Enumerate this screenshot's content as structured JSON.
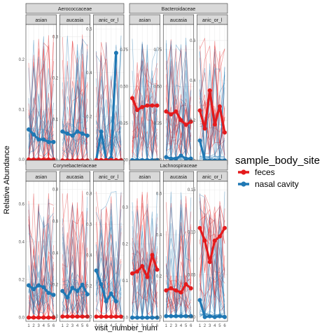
{
  "chart_data": {
    "type": "line",
    "xlabel": "visit_number_num",
    "ylabel": "Relative Abundance",
    "x_ticks": [
      1,
      2,
      3,
      4,
      5,
      6
    ],
    "subgroups": [
      "asian",
      "caucasian",
      "hispanic_or_latino"
    ],
    "subgroup_labels": [
      "asian",
      "aucasia",
      "anic_or_l"
    ],
    "legend": {
      "title": "sample_body_site",
      "position": "right",
      "entries": [
        {
          "name": "feces",
          "color": "#e41a1c"
        },
        {
          "name": "nasal cavity",
          "color": "#1f78b4"
        }
      ]
    },
    "background_lines": {
      "description_colors": [
        "#e41a1c",
        "#1f78b4"
      ]
    },
    "facets": [
      {
        "family": "Aerococcaceae",
        "panels": [
          {
            "subgroup": "asian",
            "ylim": [
              -0.01,
              0.27
            ],
            "yticks": [
              0.0,
              0.1,
              0.2
            ],
            "series": {
              "feces": [
                0.0,
                0.0,
                0.0,
                0.0,
                0.0,
                0.0
              ],
              "nasal cavity": [
                0.06,
                0.05,
                0.04,
                0.04,
                0.035,
                0.035
              ]
            }
          },
          {
            "subgroup": "caucasian",
            "ylim": [
              -0.01,
              0.33
            ],
            "yticks": [
              0.0,
              0.1,
              0.2,
              0.3
            ],
            "series": {
              "feces": [
                0.0,
                0.0,
                0.0,
                0.0,
                0.0,
                0.0
              ],
              "nasal cavity": [
                0.07,
                0.065,
                0.06,
                0.07,
                0.065,
                0.06
              ]
            }
          },
          {
            "subgroup": "hispanic_or_latino",
            "ylim": [
              -0.02,
              0.62
            ],
            "yticks": [
              0.0,
              0.2,
              0.4,
              0.6
            ],
            "series": {
              "feces": [
                0.0,
                0.0,
                0.0,
                0.0,
                0.0,
                0.0
              ],
              "nasal cavity": [
                0.0,
                0.13,
                0.0,
                0.01,
                0.49,
                null
              ]
            }
          }
        ]
      },
      {
        "family": "Bacteroidaceae",
        "panels": [
          {
            "subgroup": "asian",
            "ylim": [
              -0.03,
              0.92
            ],
            "yticks": [
              0.0,
              0.25,
              0.5,
              0.75
            ],
            "series": {
              "feces": [
                0.42,
                0.34,
                0.36,
                0.37,
                0.37,
                0.37
              ],
              "nasal cavity": [
                0.0,
                0.0,
                0.0,
                0.0,
                0.0,
                0.0
              ]
            }
          },
          {
            "subgroup": "caucasian",
            "ylim": [
              -0.03,
              0.92
            ],
            "yticks": [
              0.0,
              0.25,
              0.5,
              0.75
            ],
            "series": {
              "feces": [
                0.33,
                0.31,
                0.33,
                0.27,
                0.24,
                0.26
              ],
              "nasal cavity": [
                0.02,
                0.01,
                0.01,
                0.03,
                0.01,
                0.01
              ]
            }
          },
          {
            "subgroup": "hispanic_or_latino",
            "ylim": [
              -0.02,
              0.68
            ],
            "yticks": [
              0.0,
              0.2,
              0.4,
              0.6
            ],
            "series": {
              "feces": [
                0.25,
                0.16,
                0.35,
                0.18,
                0.27,
                0.14
              ],
              "nasal cavity": [
                0.1,
                0.0,
                0.0,
                0.0,
                0.0,
                0.0
              ]
            }
          }
        ]
      },
      {
        "family": "Corynebacteriaceae",
        "panels": [
          {
            "subgroup": "asian",
            "ylim": [
              -0.02,
              0.72
            ],
            "yticks": [
              0.0,
              0.2,
              0.4,
              0.6
            ],
            "series": {
              "feces": [
                0.0,
                0.0,
                0.0,
                0.0,
                0.0,
                0.0
              ],
              "nasal cavity": [
                0.17,
                0.15,
                0.17,
                0.16,
                0.13,
                0.12
              ]
            }
          },
          {
            "subgroup": "caucasian",
            "ylim": [
              -0.03,
              0.85
            ],
            "yticks": [
              0.0,
              0.2,
              0.4,
              0.6,
              0.8
            ],
            "series": {
              "feces": [
                0.0,
                0.0,
                0.0,
                0.0,
                0.0,
                0.0
              ],
              "nasal cavity": [
                0.16,
                0.12,
                0.18,
                0.16,
                0.2,
                0.14
              ]
            }
          },
          {
            "subgroup": "hispanic_or_latino",
            "ylim": [
              -0.03,
              0.88
            ],
            "yticks": [
              0.0,
              0.2,
              0.4,
              0.6,
              0.8
            ],
            "series": {
              "feces": [
                0.0,
                0.0,
                0.0,
                0.0,
                0.0,
                0.0
              ],
              "nasal cavity": [
                0.3,
                0.21,
                0.1,
                0.15,
                0.1,
                null
              ]
            }
          }
        ]
      },
      {
        "family": "Lachnospiraceae",
        "panels": [
          {
            "subgroup": "asian",
            "ylim": [
              -0.01,
              0.37
            ],
            "yticks": [
              0.0,
              0.1,
              0.2,
              0.3
            ],
            "series": {
              "feces": [
                0.12,
                0.125,
                0.14,
                0.11,
                0.17,
                0.13
              ],
              "nasal cavity": [
                0.0,
                0.0,
                0.0,
                0.0,
                0.0,
                0.0
              ]
            }
          },
          {
            "subgroup": "caucasian",
            "ylim": [
              -0.02,
              0.66
            ],
            "yticks": [
              0.0,
              0.2,
              0.4,
              0.6
            ],
            "series": {
              "feces": [
                0.13,
                0.14,
                0.13,
                0.12,
                0.16,
                0.14
              ],
              "nasal cavity": [
                0.005,
                0.005,
                0.005,
                0.005,
                0.005,
                0.005
              ]
            }
          },
          {
            "subgroup": "hispanic_or_latino",
            "ylim": [
              -0.005,
              0.16
            ],
            "yticks": [
              0.0,
              0.05,
              0.1,
              0.15
            ],
            "series": {
              "feces": [
                0.105,
                0.09,
                0.065,
                0.09,
                0.095,
                0.105
              ],
              "nasal cavity": [
                0.02,
                0.0,
                0.001,
                0.0,
                0.001,
                0.0
              ]
            }
          }
        ]
      }
    ]
  }
}
